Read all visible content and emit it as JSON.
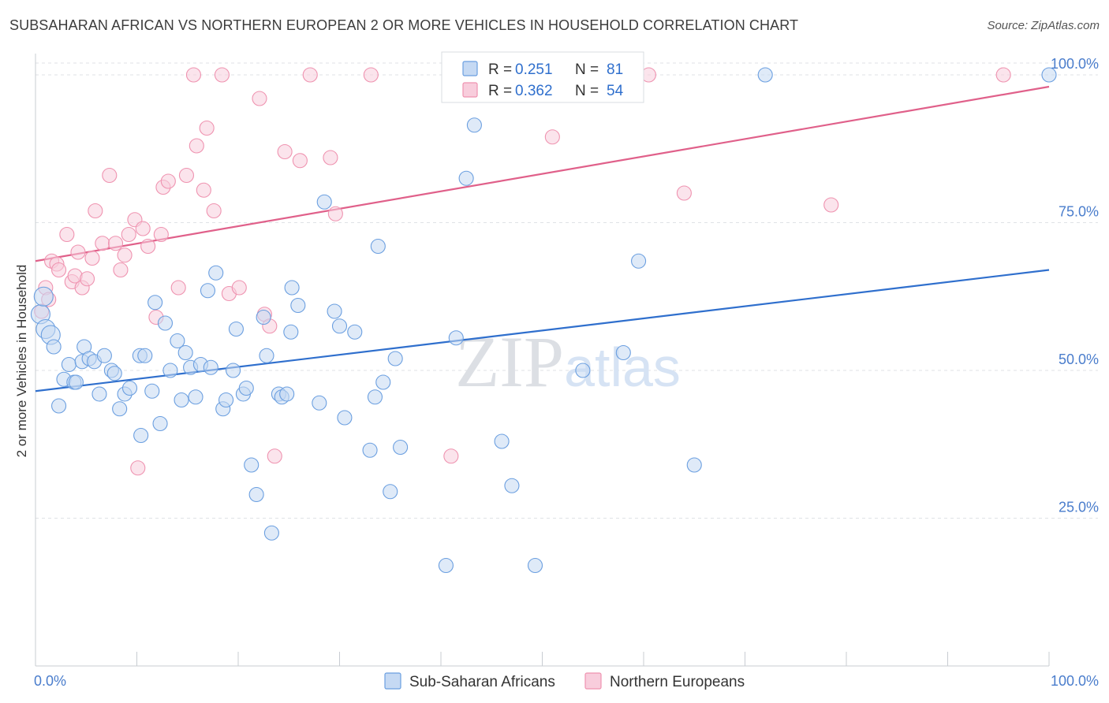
{
  "chart_data": {
    "type": "scatter",
    "title": "SUBSAHARAN AFRICAN VS NORTHERN EUROPEAN 2 OR MORE VEHICLES IN HOUSEHOLD CORRELATION CHART",
    "source": "Source: ZipAtlas.com",
    "ylabel": "2 or more Vehicles in Household",
    "xlabel": "",
    "xlim": [
      0,
      100
    ],
    "ylim": [
      0,
      102
    ],
    "x_tick_labels": [
      "0.0%",
      "100.0%"
    ],
    "y_ticks": [
      {
        "value": 25,
        "label": "25.0%"
      },
      {
        "value": 50,
        "label": "50.0%"
      },
      {
        "value": 75,
        "label": "75.0%"
      },
      {
        "value": 100,
        "label": "100.0%"
      }
    ],
    "watermark": "ZIPatlas",
    "legend_box": [
      {
        "r_label": "R =",
        "r_value": "0.251",
        "n_label": "N =",
        "n_value": "81"
      },
      {
        "r_label": "R =",
        "r_value": "0.362",
        "n_label": "N =",
        "n_value": "54"
      }
    ],
    "series": [
      {
        "name": "Sub-Saharan Africans",
        "color": "#6b9fe0",
        "fill": "#c5d9f3",
        "line_color": "#2f6fcd",
        "trend": [
          [
            0,
            46.5
          ],
          [
            100,
            67
          ]
        ],
        "points": [
          [
            0.5,
            59.5
          ],
          [
            0.8,
            62.5
          ],
          [
            1.0,
            57
          ],
          [
            1.5,
            56
          ],
          [
            1.8,
            54
          ],
          [
            2.3,
            44
          ],
          [
            2.8,
            48.5
          ],
          [
            3.3,
            51
          ],
          [
            3.8,
            48
          ],
          [
            4.6,
            51.5
          ],
          [
            4.8,
            54
          ],
          [
            5.3,
            52
          ],
          [
            5.8,
            51.5
          ],
          [
            6.3,
            46
          ],
          [
            6.8,
            52.5
          ],
          [
            7.5,
            50
          ],
          [
            7.8,
            49.5
          ],
          [
            8.3,
            43.5
          ],
          [
            8.8,
            46
          ],
          [
            9.3,
            47
          ],
          [
            10.3,
            52.5
          ],
          [
            10.4,
            39
          ],
          [
            10.8,
            52.5
          ],
          [
            11.5,
            46.5
          ],
          [
            11.8,
            61.5
          ],
          [
            12.3,
            41
          ],
          [
            12.8,
            58
          ],
          [
            13.3,
            50
          ],
          [
            14.0,
            55
          ],
          [
            14.4,
            45
          ],
          [
            14.8,
            53
          ],
          [
            15.3,
            50.5
          ],
          [
            15.8,
            45.5
          ],
          [
            16.3,
            51
          ],
          [
            17.0,
            63.5
          ],
          [
            17.3,
            50.5
          ],
          [
            17.8,
            66.5
          ],
          [
            18.5,
            43.5
          ],
          [
            18.8,
            45
          ],
          [
            19.5,
            50
          ],
          [
            19.8,
            57
          ],
          [
            20.5,
            46
          ],
          [
            20.8,
            47
          ],
          [
            21.3,
            34
          ],
          [
            21.8,
            29
          ],
          [
            22.5,
            59
          ],
          [
            22.8,
            52.5
          ],
          [
            23.3,
            22.5
          ],
          [
            24.0,
            46
          ],
          [
            24.3,
            45.5
          ],
          [
            24.8,
            46
          ],
          [
            25.2,
            56.5
          ],
          [
            25.3,
            64
          ],
          [
            25.9,
            61
          ],
          [
            28.0,
            44.5
          ],
          [
            28.5,
            78.5
          ],
          [
            29.5,
            60
          ],
          [
            30.0,
            57.5
          ],
          [
            30.5,
            42
          ],
          [
            31.5,
            56.5
          ],
          [
            33.0,
            36.5
          ],
          [
            33.5,
            45.5
          ],
          [
            33.8,
            71
          ],
          [
            34.3,
            48
          ],
          [
            35.0,
            29.5
          ],
          [
            35.5,
            52
          ],
          [
            36.0,
            37
          ],
          [
            40.5,
            17
          ],
          [
            41.5,
            55.5
          ],
          [
            42.5,
            82.5
          ],
          [
            43.3,
            91.5
          ],
          [
            46.0,
            38
          ],
          [
            47.0,
            30.5
          ],
          [
            49.3,
            17
          ],
          [
            54.0,
            50
          ],
          [
            58.0,
            53
          ],
          [
            59.5,
            68.5
          ],
          [
            65.0,
            34
          ],
          [
            72.0,
            100
          ],
          [
            100,
            100
          ],
          [
            4.0,
            48
          ]
        ]
      },
      {
        "name": "Northern Europeans",
        "color": "#ef93b0",
        "fill": "#f8cddc",
        "line_color": "#e0608a",
        "trend": [
          [
            0,
            68.5
          ],
          [
            100,
            98
          ]
        ],
        "points": [
          [
            0.6,
            60
          ],
          [
            1.0,
            64
          ],
          [
            1.3,
            62
          ],
          [
            1.6,
            68.5
          ],
          [
            2.1,
            68
          ],
          [
            2.3,
            67
          ],
          [
            3.1,
            73
          ],
          [
            3.6,
            65
          ],
          [
            3.9,
            66
          ],
          [
            4.2,
            70
          ],
          [
            4.6,
            64
          ],
          [
            5.1,
            65.5
          ],
          [
            5.6,
            69
          ],
          [
            5.9,
            77
          ],
          [
            6.6,
            71.5
          ],
          [
            7.3,
            83
          ],
          [
            7.9,
            71.5
          ],
          [
            8.4,
            67
          ],
          [
            8.8,
            69.5
          ],
          [
            9.2,
            73
          ],
          [
            9.8,
            75.5
          ],
          [
            10.1,
            33.5
          ],
          [
            10.6,
            74
          ],
          [
            11.1,
            71
          ],
          [
            11.9,
            59
          ],
          [
            12.4,
            73
          ],
          [
            12.6,
            81
          ],
          [
            13.1,
            82
          ],
          [
            14.1,
            64
          ],
          [
            14.9,
            83
          ],
          [
            15.6,
            100
          ],
          [
            15.9,
            88
          ],
          [
            16.6,
            80.5
          ],
          [
            16.9,
            91
          ],
          [
            17.6,
            77
          ],
          [
            18.4,
            100
          ],
          [
            19.1,
            63
          ],
          [
            20.1,
            64
          ],
          [
            22.1,
            96
          ],
          [
            22.6,
            59.5
          ],
          [
            23.1,
            57.5
          ],
          [
            23.6,
            35.5
          ],
          [
            24.6,
            87
          ],
          [
            26.1,
            85.5
          ],
          [
            27.1,
            100
          ],
          [
            29.1,
            86
          ],
          [
            29.6,
            76.5
          ],
          [
            33.1,
            100
          ],
          [
            41.0,
            35.5
          ],
          [
            51.0,
            89.5
          ],
          [
            60.5,
            100
          ],
          [
            64.0,
            80
          ],
          [
            78.5,
            78
          ],
          [
            95.5,
            100
          ]
        ]
      }
    ]
  }
}
